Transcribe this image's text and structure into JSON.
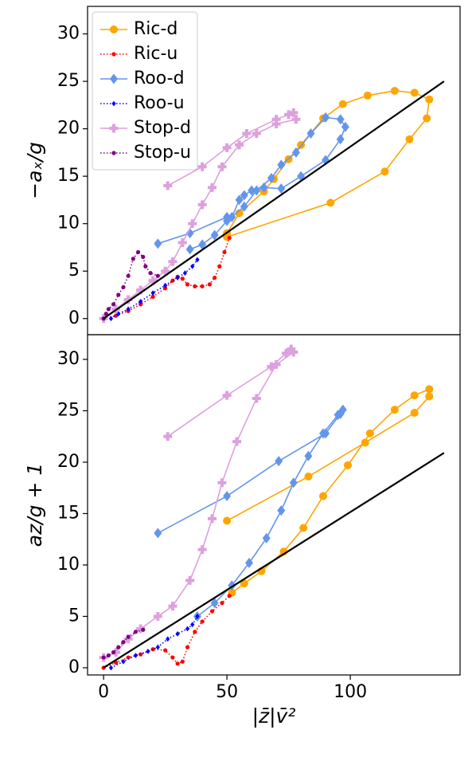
{
  "chart_data": [
    {
      "type": "line",
      "ylabel": "−aₓ/g",
      "xlim": [
        -6.5,
        144.5
      ],
      "ylim": [
        -1.7,
        32.9
      ],
      "yticks": [
        0,
        5,
        10,
        15,
        20,
        25,
        30
      ],
      "legend": "upper left",
      "series": [
        {
          "name": "Ric-d",
          "color": "#ffa500",
          "marker": "circle",
          "linestyle": "solid",
          "x": [
            50,
            92,
            114,
            124,
            131,
            132,
            126,
            118,
            107,
            97,
            89,
            80,
            75,
            69,
            65,
            55,
            50
          ],
          "values": [
            8.6,
            12.2,
            15.5,
            18.9,
            21.1,
            23.1,
            23.8,
            24.0,
            23.5,
            22.6,
            21.1,
            18.3,
            16.8,
            14.7,
            13.4,
            11.1,
            9.0
          ]
        },
        {
          "name": "Ric-u",
          "color": "#ff0000",
          "marker": "circle",
          "linestyle": "dotted",
          "x": [
            0,
            5,
            10,
            15,
            20,
            25,
            28,
            30,
            32,
            34,
            37,
            40,
            43,
            45,
            47,
            49,
            51
          ],
          "values": [
            0,
            0.3,
            0.8,
            1.5,
            2.3,
            3.2,
            4.0,
            4.4,
            4.2,
            3.6,
            3.4,
            3.4,
            3.6,
            4.3,
            5.5,
            7.0,
            8.5
          ]
        },
        {
          "name": "Roo-d",
          "color": "#6495ed",
          "marker": "diamond",
          "linestyle": "solid",
          "x": [
            22,
            35,
            50,
            52,
            55,
            57,
            60,
            65,
            72,
            80,
            90,
            96,
            98,
            96,
            90,
            84,
            78,
            72,
            68,
            62,
            57,
            50,
            45,
            40,
            35
          ],
          "values": [
            7.9,
            9.0,
            10.7,
            10.7,
            12.5,
            13.0,
            13.5,
            13.8,
            13.7,
            15.0,
            16.7,
            18.9,
            20.2,
            21.0,
            21.2,
            19.5,
            17.5,
            16.2,
            14.8,
            13.5,
            11.8,
            10.3,
            8.8,
            7.8,
            7.3
          ]
        },
        {
          "name": "Roo-u",
          "color": "#0000ff",
          "marker": "diamond",
          "linestyle": "dotted",
          "x": [
            3,
            6,
            10,
            15,
            20,
            25,
            30,
            33,
            36,
            38
          ],
          "values": [
            0,
            0.5,
            1.0,
            1.8,
            2.7,
            3.5,
            4.3,
            4.8,
            5.5,
            6.2
          ]
        },
        {
          "name": "Stop-d",
          "color": "#dda0dd",
          "marker": "plus",
          "linestyle": "solid",
          "x": [
            26,
            40,
            50,
            58,
            70,
            75,
            77,
            78,
            70,
            62,
            55,
            48,
            44,
            40,
            36,
            32,
            28,
            25,
            20,
            15,
            10,
            5,
            0
          ],
          "values": [
            14.0,
            16.0,
            18.0,
            19.5,
            21.0,
            21.5,
            21.7,
            21.0,
            20.5,
            19.5,
            18.3,
            16.0,
            13.8,
            12.0,
            10.0,
            8.0,
            6.0,
            5.0,
            4.0,
            3.0,
            2.0,
            1.0,
            0
          ]
        },
        {
          "name": "Stop-u",
          "color": "#800080",
          "marker": "circle",
          "linestyle": "dotted",
          "x": [
            0,
            1,
            2,
            4,
            6,
            8,
            10,
            12,
            14,
            16,
            17,
            19,
            22
          ],
          "values": [
            0,
            0.5,
            1.0,
            1.5,
            2.5,
            3.3,
            4.5,
            6.3,
            7.0,
            6.5,
            5.5,
            4.8,
            4.5
          ]
        },
        {
          "color": "#000000",
          "linestyle": "solid",
          "x": [
            0,
            138
          ],
          "values": [
            0,
            25
          ]
        }
      ]
    },
    {
      "type": "line",
      "ylabel": "az/g + 1",
      "xlabel": "|z̄|v̄²",
      "xlim": [
        -6.5,
        144.5
      ],
      "ylim": [
        -0.7,
        32.4
      ],
      "xticks": [
        0,
        50,
        100
      ],
      "yticks": [
        0,
        5,
        10,
        15,
        20,
        25,
        30
      ],
      "series": [
        {
          "color": "#ffa500",
          "marker": "circle",
          "linestyle": "solid",
          "x": [
            50,
            83,
            106,
            126,
            132,
            132,
            126,
            118,
            108,
            99,
            89,
            81,
            73,
            64,
            57,
            52
          ],
          "values": [
            14.3,
            18.6,
            21.9,
            24.8,
            26.4,
            27.1,
            26.5,
            25.1,
            22.8,
            19.7,
            16.7,
            13.6,
            11.3,
            9.4,
            8.2,
            7.3
          ]
        },
        {
          "color": "#ff0000",
          "marker": "circle",
          "linestyle": "dotted",
          "x": [
            0,
            5,
            10,
            15,
            20,
            25,
            28,
            30,
            32,
            34,
            37,
            40,
            44,
            48,
            51
          ],
          "values": [
            0,
            0.5,
            1.0,
            1.3,
            1.8,
            1.7,
            1.0,
            0.4,
            0.6,
            2.0,
            3.5,
            4.5,
            5.5,
            6.3,
            7.0
          ]
        },
        {
          "color": "#6495ed",
          "marker": "diamond",
          "linestyle": "solid",
          "x": [
            22,
            50,
            71,
            90,
            96,
            97,
            95,
            89,
            83,
            77,
            72,
            66,
            59,
            52,
            45,
            38
          ],
          "values": [
            13.1,
            16.7,
            20.1,
            22.8,
            24.7,
            25.1,
            24.6,
            22.8,
            20.6,
            18.0,
            15.3,
            12.6,
            10.2,
            8.0,
            6.3,
            5.0
          ]
        },
        {
          "color": "#0000ff",
          "marker": "diamond",
          "linestyle": "dotted",
          "x": [
            3,
            8,
            13,
            18,
            22,
            26,
            30,
            34,
            36,
            38
          ],
          "values": [
            0,
            0.6,
            1.2,
            1.6,
            2.0,
            2.8,
            3.3,
            3.8,
            4.2,
            5.0
          ]
        },
        {
          "color": "#dda0dd",
          "marker": "plus",
          "linestyle": "solid",
          "x": [
            26,
            50,
            68,
            74,
            76,
            77,
            70,
            62,
            54,
            48,
            44,
            40,
            35,
            28,
            22,
            15,
            10,
            5,
            0
          ],
          "values": [
            22.5,
            26.5,
            29.3,
            30.6,
            31.0,
            30.7,
            29.5,
            26.2,
            22.0,
            18.0,
            14.5,
            11.5,
            8.5,
            6.0,
            5.0,
            3.8,
            2.8,
            1.5,
            1.0
          ]
        },
        {
          "color": "#800080",
          "marker": "circle",
          "linestyle": "dotted",
          "x": [
            0,
            2,
            4,
            6,
            8,
            10,
            13,
            16
          ],
          "values": [
            1.0,
            1.2,
            1.5,
            2.0,
            2.5,
            3.0,
            3.5,
            3.7
          ]
        },
        {
          "color": "#000000",
          "linestyle": "solid",
          "x": [
            0,
            138
          ],
          "values": [
            0,
            20.9
          ]
        }
      ]
    }
  ]
}
